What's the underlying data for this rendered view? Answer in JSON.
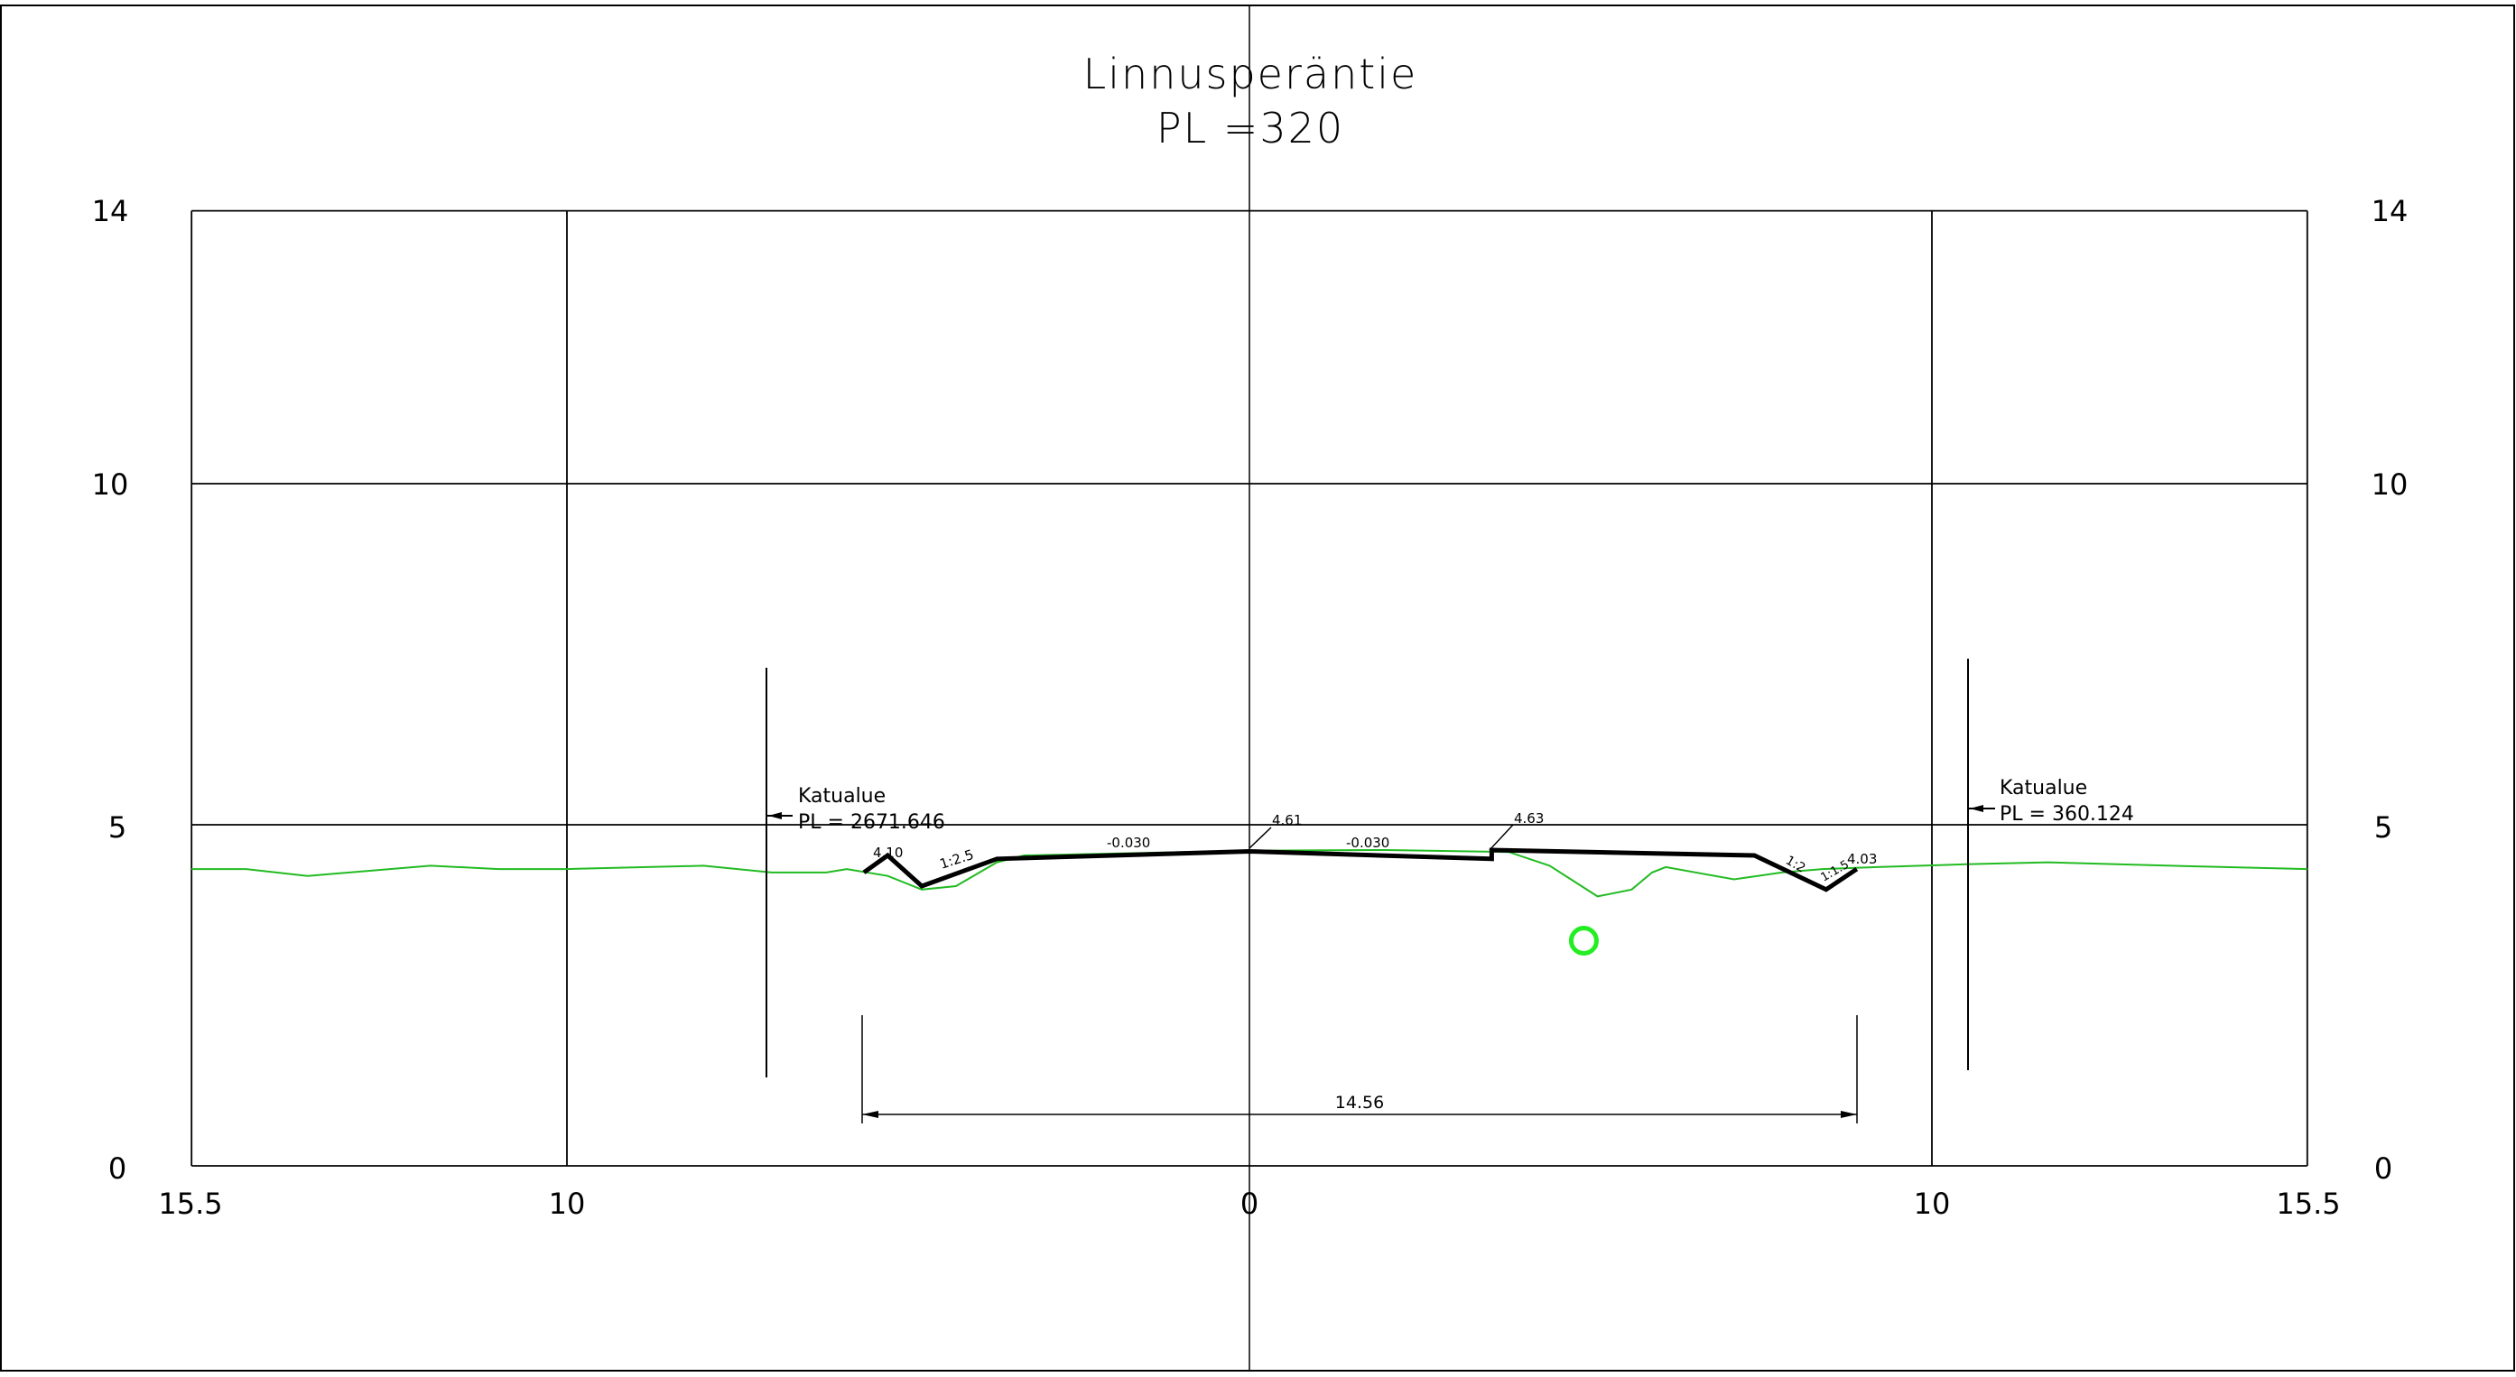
{
  "title": {
    "line1": "Linnusperäntie",
    "line2": "PL =320"
  },
  "axes": {
    "y_ticks": [
      "0",
      "5",
      "10",
      "14"
    ],
    "x_ticks": [
      "15.5",
      "10",
      "0",
      "10",
      "15.5"
    ],
    "x_range": [
      -15.5,
      15.5
    ],
    "y_range": [
      0,
      14
    ]
  },
  "boundaries": [
    {
      "label": "Katualue",
      "pl": "PL = 2671.646",
      "side": "left",
      "offset": -7.15
    },
    {
      "label": "Katualue",
      "pl": "PL = 360.124",
      "side": "right",
      "offset": 10.55
    }
  ],
  "annotations": {
    "center_height": "4.61",
    "right_edge_height": "4.63",
    "left_slope_top": "4.10",
    "left_slope_ratio": "1:2.5",
    "left_crossfall": "-0.030",
    "right_crossfall": "-0.030",
    "right_slope_ratio_1": "1:2",
    "right_slope_ratio_2": "1:1.5",
    "right_slope_top": "4.03",
    "width_dimension": "14.56"
  },
  "design_section": {
    "color": "#000000",
    "points": [
      [
        -5.65,
        4.3
      ],
      [
        -5.3,
        4.55
      ],
      [
        -4.8,
        4.1
      ],
      [
        -3.7,
        4.5
      ],
      [
        0,
        4.61
      ],
      [
        3.55,
        4.5
      ],
      [
        3.55,
        4.63
      ],
      [
        7.4,
        4.55
      ],
      [
        8.45,
        4.05
      ],
      [
        8.9,
        4.35
      ]
    ]
  },
  "ground_line": {
    "color": "#22bb22",
    "points": [
      [
        -15.5,
        4.35
      ],
      [
        -14.7,
        4.35
      ],
      [
        -13.8,
        4.25
      ],
      [
        -12.0,
        4.4
      ],
      [
        -11.0,
        4.35
      ],
      [
        -10.0,
        4.35
      ],
      [
        -8.0,
        4.4
      ],
      [
        -7.0,
        4.3
      ],
      [
        -6.2,
        4.3
      ],
      [
        -5.9,
        4.35
      ],
      [
        -5.3,
        4.25
      ],
      [
        -4.8,
        4.05
      ],
      [
        -4.3,
        4.1
      ],
      [
        -3.7,
        4.45
      ],
      [
        -3.3,
        4.55
      ],
      [
        0,
        4.62
      ],
      [
        2.0,
        4.63
      ],
      [
        3.8,
        4.6
      ],
      [
        4.4,
        4.4
      ],
      [
        5.1,
        3.95
      ],
      [
        5.6,
        4.05
      ],
      [
        5.9,
        4.3
      ],
      [
        6.1,
        4.38
      ],
      [
        7.1,
        4.2
      ],
      [
        7.8,
        4.3
      ],
      [
        8.4,
        4.35
      ],
      [
        9.2,
        4.38
      ],
      [
        10.5,
        4.42
      ],
      [
        11.7,
        4.45
      ],
      [
        13.5,
        4.4
      ],
      [
        15.5,
        4.35
      ]
    ]
  },
  "marker": {
    "x": 4.9,
    "y": 3.3,
    "color": "#22ee22"
  },
  "colors": {
    "frame": "#000000",
    "ground": "#22bb22",
    "marker": "#22ee22"
  }
}
